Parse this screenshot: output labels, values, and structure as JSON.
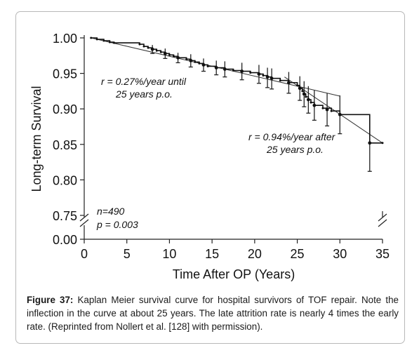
{
  "chart_data": {
    "type": "line",
    "title": "",
    "xlabel": "Time After OP (Years)",
    "ylabel": "Long-term Survival",
    "xlim": [
      0,
      35
    ],
    "ylim": [
      0.75,
      1.0
    ],
    "y_axis_break": {
      "lower_label": "0.00",
      "between": [
        0.0,
        0.75
      ]
    },
    "x_ticks": [
      0,
      5,
      10,
      15,
      20,
      25,
      30,
      35
    ],
    "y_ticks": [
      1.0,
      0.95,
      0.9,
      0.85,
      0.8,
      0.75
    ],
    "x_tick_labels": [
      "0",
      "5",
      "10",
      "15",
      "20",
      "25",
      "30",
      "35"
    ],
    "y_tick_labels": [
      "1.00",
      "0.95",
      "0.90",
      "0.85",
      "0.80",
      "0.75",
      "0.00"
    ],
    "grid": false,
    "series": [
      {
        "kind": "kaplan-meier-step",
        "points": [
          [
            0.8,
            1.0
          ],
          [
            1.5,
            0.998
          ],
          [
            2.3,
            0.996
          ],
          [
            3.0,
            0.994
          ],
          [
            3.5,
            0.993
          ],
          [
            6.5,
            0.991
          ],
          [
            7.0,
            0.988
          ],
          [
            7.5,
            0.986
          ],
          [
            8.0,
            0.984
          ],
          [
            8.5,
            0.982
          ],
          [
            9.0,
            0.98
          ],
          [
            9.5,
            0.978
          ],
          [
            10.0,
            0.976
          ],
          [
            10.5,
            0.974
          ],
          [
            11.0,
            0.972
          ],
          [
            12.0,
            0.97
          ],
          [
            12.5,
            0.968
          ],
          [
            13.0,
            0.966
          ],
          [
            13.5,
            0.964
          ],
          [
            14.0,
            0.962
          ],
          [
            14.5,
            0.96
          ],
          [
            15.5,
            0.958
          ],
          [
            16.5,
            0.956
          ],
          [
            17.5,
            0.954
          ],
          [
            18.5,
            0.953
          ],
          [
            19.5,
            0.951
          ],
          [
            20.5,
            0.949
          ],
          [
            21.0,
            0.947
          ],
          [
            21.5,
            0.945
          ],
          [
            22.0,
            0.943
          ],
          [
            23.0,
            0.94
          ],
          [
            24.0,
            0.937
          ],
          [
            25.0,
            0.933
          ],
          [
            25.3,
            0.929
          ],
          [
            25.6,
            0.925
          ],
          [
            25.8,
            0.921
          ],
          [
            26.0,
            0.917
          ],
          [
            26.3,
            0.913
          ],
          [
            26.6,
            0.909
          ],
          [
            27.0,
            0.905
          ],
          [
            28.0,
            0.901
          ],
          [
            29.0,
            0.897
          ],
          [
            30.0,
            0.892
          ],
          [
            33.5,
            0.852
          ],
          [
            35.0,
            0.852
          ]
        ]
      }
    ],
    "error_bars": [
      {
        "x": 8.0,
        "y": 0.984,
        "low": 0.978,
        "high": 0.99
      },
      {
        "x": 9.5,
        "y": 0.978,
        "low": 0.971,
        "high": 0.985
      },
      {
        "x": 11.0,
        "y": 0.972,
        "low": 0.965,
        "high": 0.979
      },
      {
        "x": 12.5,
        "y": 0.968,
        "low": 0.959,
        "high": 0.977
      },
      {
        "x": 14.0,
        "y": 0.962,
        "low": 0.953,
        "high": 0.971
      },
      {
        "x": 15.5,
        "y": 0.958,
        "low": 0.948,
        "high": 0.968
      },
      {
        "x": 16.5,
        "y": 0.956,
        "low": 0.945,
        "high": 0.967
      },
      {
        "x": 18.5,
        "y": 0.953,
        "low": 0.941,
        "high": 0.965
      },
      {
        "x": 20.5,
        "y": 0.949,
        "low": 0.936,
        "high": 0.962
      },
      {
        "x": 21.5,
        "y": 0.945,
        "low": 0.93,
        "high": 0.958
      },
      {
        "x": 22.0,
        "y": 0.943,
        "low": 0.928,
        "high": 0.957
      },
      {
        "x": 24.0,
        "y": 0.937,
        "low": 0.922,
        "high": 0.952
      },
      {
        "x": 25.3,
        "y": 0.929,
        "low": 0.912,
        "high": 0.946
      },
      {
        "x": 25.8,
        "y": 0.921,
        "low": 0.903,
        "high": 0.939
      },
      {
        "x": 26.3,
        "y": 0.913,
        "low": 0.894,
        "high": 0.932
      },
      {
        "x": 27.0,
        "y": 0.905,
        "low": 0.884,
        "high": 0.926
      },
      {
        "x": 28.5,
        "y": 0.899,
        "low": 0.876,
        "high": 0.922
      },
      {
        "x": 30.0,
        "y": 0.892,
        "low": 0.865,
        "high": 0.919
      },
      {
        "x": 33.5,
        "y": 0.852,
        "low": 0.812,
        "high": 0.892
      }
    ],
    "trend_lines": [
      {
        "from": [
          0.8,
          1.0
        ],
        "to": [
          30.0,
          0.918
        ]
      },
      {
        "from": [
          23.5,
          0.945
        ],
        "to": [
          35.0,
          0.852
        ]
      }
    ],
    "annotations": {
      "early_rate": "r = 0.27%/year until",
      "early_rate_2": "25 years p.o.",
      "late_rate": "r = 0.94%/year after",
      "late_rate_2": "25 years p.o.",
      "n": "n=490",
      "p": "p = 0.003"
    }
  },
  "caption": {
    "label": "Figure 37:",
    "text": " Kaplan Meier survival curve for hospital survivors of TOF repair. Note the inflection in the curve at about 25 years. The late attrition rate is nearly 4 times the early rate. (Reprinted from Nollert et al. [128] with permission)."
  }
}
